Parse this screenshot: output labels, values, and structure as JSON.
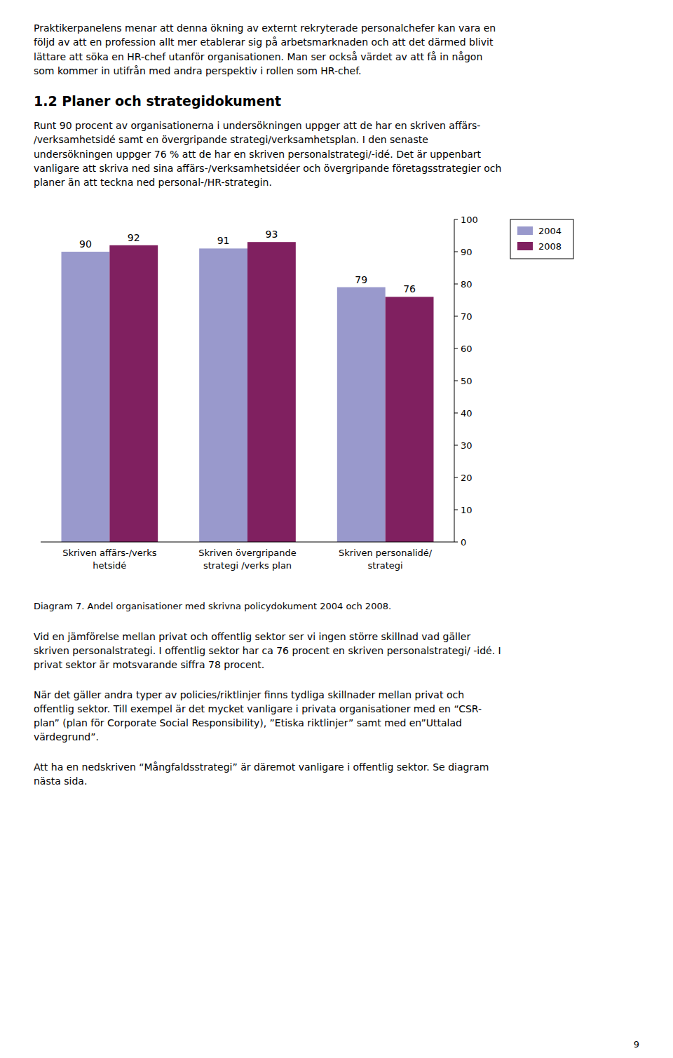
{
  "top_text": "Praktikerpanelens menar att denna ökning av externt rekryterade personalchefer kan vara en\nföljd av att en profession allt mer etablerar sig på arbetsmarknaden och att det därmed blivit\nlättare att söka en HR-chef utanför organisationen. Man ser också värdet av att få in någon\nsom kommer in utifrån med andra perspektiv i rollen som HR-chef.",
  "heading": "1.2 Planer och strategidokument",
  "body_text": "Runt 90 procent av organisationerna i undersökningen uppger att de har en skriven affärs-\n/verksamhetsidé samt en övergripande strategi/verksamhetsplan. I den senaste\nundersökningen uppger 76 % att de har en skriven personalstrategi/-idé. Det är uppenbart\nvanligare att skriva ned sina affärs-/verksamhetsidéer och övergripande företagsstrategier och\nplaner än att teckna ned personal-/HR-strategin.",
  "chart_data": {
    "type": "bar",
    "title": "Diagram 7. Andel organisationer med skrivna policydokument 2004 och 2008.",
    "categories": [
      "Skriven affärs-/verks\nhetsidé",
      "Skriven övergripande\nstrategi /verks plan",
      "Skriven personalidé/\nstrategi"
    ],
    "series": [
      {
        "name": "2004",
        "color": "#9999cc",
        "values": [
          90,
          91,
          79
        ]
      },
      {
        "name": "2008",
        "color": "#802060",
        "values": [
          92,
          93,
          76
        ]
      }
    ],
    "ylim": [
      0,
      100
    ],
    "yticks": [
      0,
      10,
      20,
      30,
      40,
      50,
      60,
      70,
      80,
      90,
      100
    ],
    "grid": false,
    "legend": "upper right",
    "data_labels": true
  },
  "bottom_texts": [
    "Vid en jämförelse mellan privat och offentlig sektor ser vi ingen större skillnad vad gäller\nskriven personalstrategi. I offentlig sektor har ca 76 procent en skriven personalstrategi/ -idé. I\nprivat sektor är motsvarande siffra 78 procent.",
    "När det gäller andra typer av policies/riktlinjer finns tydliga skillnader mellan privat och\noffentlig sektor. Till exempel är det mycket vanligare i privata organisationer med en “CSR-\nplan” (plan för Corporate Social Responsibility), ”Etiska riktlinjer” samt med en”Uttalad\nvärdegrund”.",
    "Att ha en nedskriven “Mångfaldsstrategi” är däremot vanligare i offentlig sektor. Se diagram\nnästa sida."
  ],
  "page_number": "9"
}
